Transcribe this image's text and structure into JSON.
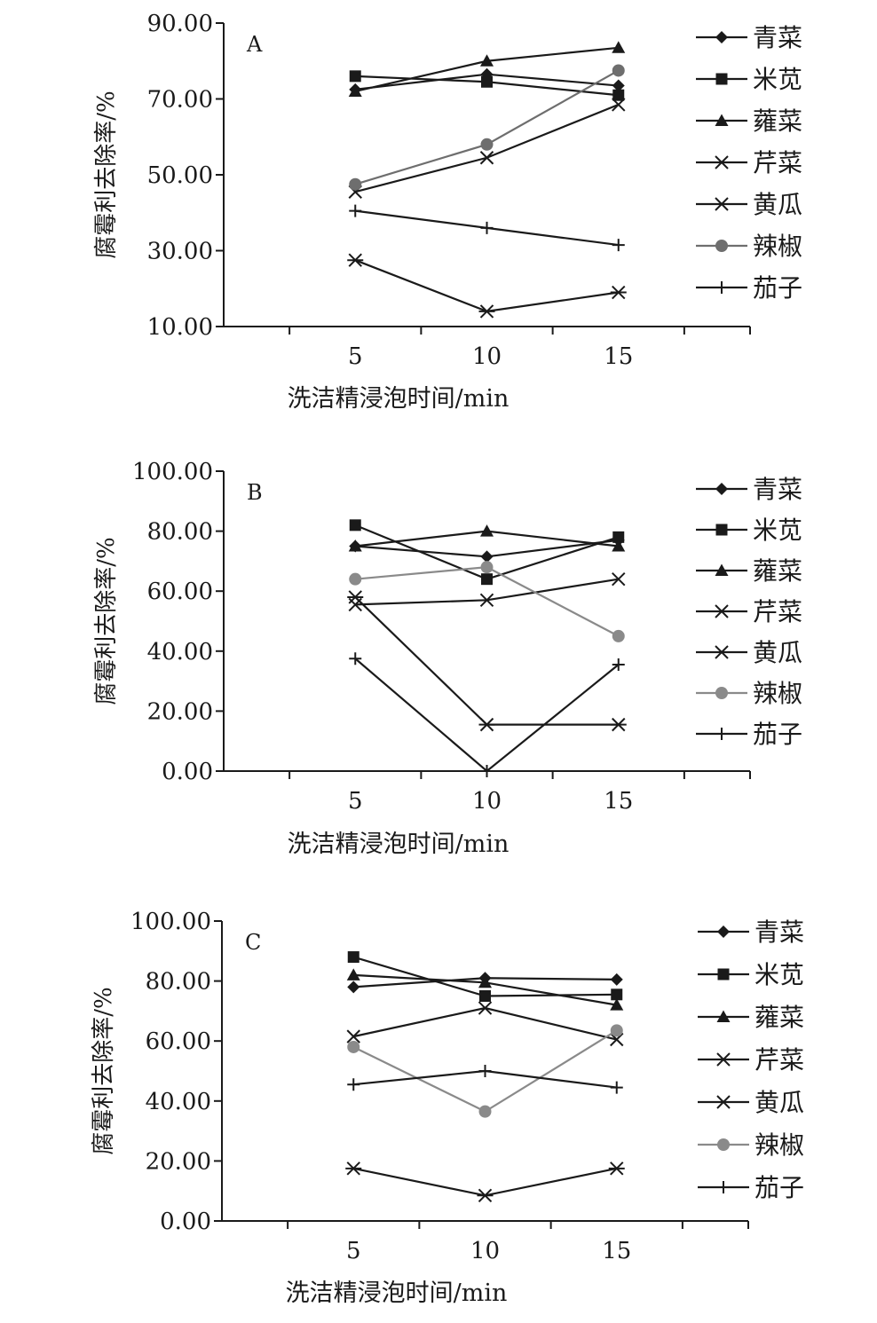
{
  "chart_data": [
    {
      "type": "line",
      "panel_label": "A",
      "title": "",
      "xlabel": "洗洁精浸泡时间/min",
      "ylabel": "腐霉利去除率/%",
      "x": [
        5,
        10,
        15
      ],
      "x_tick_labels": [
        "5",
        "10",
        "15"
      ],
      "xlim": [
        0,
        20
      ],
      "ylim": [
        10,
        90
      ],
      "y_tick_labels": [
        "10.00",
        "30.00",
        "50.00",
        "70.00",
        "90.00"
      ],
      "grid": false,
      "legend_position": "right",
      "series": [
        {
          "name": "青菜",
          "marker": "diamond",
          "color": "#1a1a1a",
          "values": [
            72.5,
            76.5,
            73.5
          ]
        },
        {
          "name": "米苋",
          "marker": "square",
          "color": "#1a1a1a",
          "values": [
            76.0,
            74.5,
            71.0
          ]
        },
        {
          "name": "蕹菜",
          "marker": "triangle",
          "color": "#1a1a1a",
          "values": [
            72.0,
            80.0,
            83.5
          ]
        },
        {
          "name": "芹菜",
          "marker": "x",
          "color": "#1a1a1a",
          "values": [
            45.5,
            54.5,
            68.5
          ]
        },
        {
          "name": "黄瓜",
          "marker": "star",
          "color": "#1a1a1a",
          "values": [
            27.5,
            14.0,
            19.0
          ]
        },
        {
          "name": "辣椒",
          "marker": "circle",
          "color": "#6e6e6e",
          "values": [
            47.5,
            58.0,
            77.5
          ]
        },
        {
          "name": "茄子",
          "marker": "plus",
          "color": "#1a1a1a",
          "values": [
            40.5,
            36.0,
            31.5
          ]
        }
      ]
    },
    {
      "type": "line",
      "panel_label": "B",
      "title": "",
      "xlabel": "洗洁精浸泡时间/min",
      "ylabel": "腐霉利去除率/%",
      "x": [
        5,
        10,
        15
      ],
      "x_tick_labels": [
        "5",
        "10",
        "15"
      ],
      "xlim": [
        0,
        20
      ],
      "ylim": [
        0,
        100
      ],
      "y_tick_labels": [
        "0.00",
        "20.00",
        "40.00",
        "60.00",
        "80.00",
        "100.00"
      ],
      "grid": false,
      "legend_position": "right",
      "series": [
        {
          "name": "青菜",
          "marker": "diamond",
          "color": "#1a1a1a",
          "values": [
            75.0,
            71.5,
            77.0
          ]
        },
        {
          "name": "米苋",
          "marker": "square",
          "color": "#1a1a1a",
          "values": [
            82.0,
            64.0,
            78.0
          ]
        },
        {
          "name": "蕹菜",
          "marker": "triangle",
          "color": "#1a1a1a",
          "values": [
            75.0,
            80.0,
            75.0
          ]
        },
        {
          "name": "芹菜",
          "marker": "x",
          "color": "#1a1a1a",
          "values": [
            55.5,
            57.0,
            64.0
          ]
        },
        {
          "name": "黄瓜",
          "marker": "star",
          "color": "#1a1a1a",
          "values": [
            58.0,
            15.5,
            15.5
          ]
        },
        {
          "name": "辣椒",
          "marker": "circle",
          "color": "#8a8a8a",
          "values": [
            64.0,
            68.0,
            45.0
          ]
        },
        {
          "name": "茄子",
          "marker": "plus",
          "color": "#1a1a1a",
          "values": [
            37.5,
            0.0,
            35.5
          ]
        }
      ]
    },
    {
      "type": "line",
      "panel_label": "C",
      "title": "",
      "xlabel": "洗洁精浸泡时间/min",
      "ylabel": "腐霉利去除率/%",
      "x": [
        5,
        10,
        15
      ],
      "x_tick_labels": [
        "5",
        "10",
        "15"
      ],
      "xlim": [
        0,
        20
      ],
      "ylim": [
        0,
        100
      ],
      "y_tick_labels": [
        "0.00",
        "20.00",
        "40.00",
        "60.00",
        "80.00",
        "100.00"
      ],
      "grid": false,
      "legend_position": "right",
      "series": [
        {
          "name": "青菜",
          "marker": "diamond",
          "color": "#1a1a1a",
          "values": [
            78.0,
            81.0,
            80.5
          ]
        },
        {
          "name": "米苋",
          "marker": "square",
          "color": "#1a1a1a",
          "values": [
            88.0,
            75.0,
            75.5
          ]
        },
        {
          "name": "蕹菜",
          "marker": "triangle",
          "color": "#1a1a1a",
          "values": [
            82.0,
            79.5,
            72.0
          ]
        },
        {
          "name": "芹菜",
          "marker": "x",
          "color": "#1a1a1a",
          "values": [
            61.5,
            71.0,
            60.5
          ]
        },
        {
          "name": "黄瓜",
          "marker": "star",
          "color": "#1a1a1a",
          "values": [
            17.5,
            8.5,
            17.5
          ]
        },
        {
          "name": "辣椒",
          "marker": "circle",
          "color": "#8a8a8a",
          "values": [
            58.0,
            36.5,
            63.5
          ]
        },
        {
          "name": "茄子",
          "marker": "plus",
          "color": "#1a1a1a",
          "values": [
            45.5,
            50.0,
            44.5
          ]
        }
      ]
    }
  ]
}
